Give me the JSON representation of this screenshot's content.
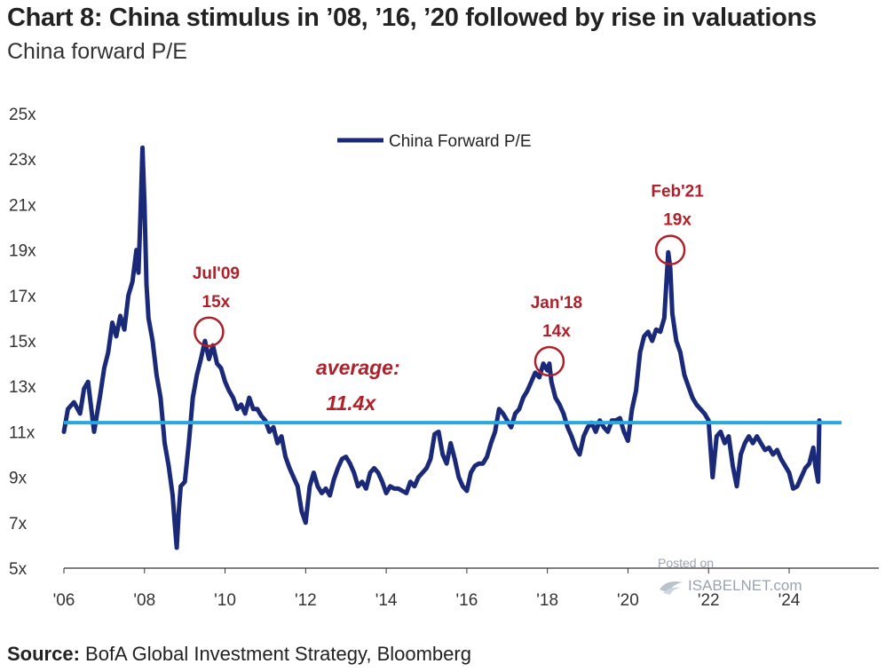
{
  "title": "Chart 8: China stimulus in ’08, ’16, ’20 followed by rise in valuations",
  "subtitle": "China forward P/E",
  "source": {
    "label": "Source:",
    "text": " BofA Global Investment Strategy, Bloomberg"
  },
  "watermark": {
    "posted": "Posted on",
    "site": "ISABELNET.com"
  },
  "colors": {
    "series": "#1a2a78",
    "average": "#29a8e0",
    "annotation": "#b0202a",
    "axis": "#333333"
  },
  "chart_data": {
    "type": "line",
    "ylim": [
      5,
      25
    ],
    "xlim": [
      2006.0,
      2025.3
    ],
    "yticks": [
      {
        "value": 25,
        "label": "25x"
      },
      {
        "value": 23,
        "label": "23x"
      },
      {
        "value": 21,
        "label": "21x"
      },
      {
        "value": 19,
        "label": "19x"
      },
      {
        "value": 17,
        "label": "17x"
      },
      {
        "value": 15,
        "label": "15x"
      },
      {
        "value": 13,
        "label": "13x"
      },
      {
        "value": 11,
        "label": "11x"
      },
      {
        "value": 9,
        "label": "9x"
      },
      {
        "value": 7,
        "label": "7x"
      },
      {
        "value": 5,
        "label": "5x"
      }
    ],
    "xticks": [
      {
        "value": 2006,
        "label": "'06"
      },
      {
        "value": 2008,
        "label": "'08"
      },
      {
        "value": 2010,
        "label": "'10"
      },
      {
        "value": 2012,
        "label": "'12"
      },
      {
        "value": 2014,
        "label": "'14"
      },
      {
        "value": 2016,
        "label": "'16"
      },
      {
        "value": 2018,
        "label": "'18"
      },
      {
        "value": 2020,
        "label": "'20"
      },
      {
        "value": 2022,
        "label": "'22"
      },
      {
        "value": 2024,
        "label": "'24"
      }
    ],
    "legend": {
      "position": "top-center",
      "entries": [
        "China Forward P/E"
      ]
    },
    "series": [
      {
        "name": "China Forward P/E",
        "x": [
          2006.0,
          2006.1,
          2006.25,
          2006.4,
          2006.5,
          2006.6,
          2006.75,
          2006.9,
          2007.0,
          2007.1,
          2007.2,
          2007.3,
          2007.4,
          2007.5,
          2007.6,
          2007.7,
          2007.8,
          2007.85,
          2007.9,
          2007.95,
          2008.0,
          2008.05,
          2008.1,
          2008.2,
          2008.3,
          2008.4,
          2008.5,
          2008.6,
          2008.7,
          2008.75,
          2008.8,
          2008.85,
          2008.9,
          2009.0,
          2009.1,
          2009.2,
          2009.3,
          2009.4,
          2009.5,
          2009.6,
          2009.7,
          2009.8,
          2009.9,
          2010.0,
          2010.1,
          2010.2,
          2010.3,
          2010.4,
          2010.5,
          2010.6,
          2010.7,
          2010.8,
          2010.9,
          2011.0,
          2011.1,
          2011.2,
          2011.3,
          2011.4,
          2011.5,
          2011.6,
          2011.7,
          2011.8,
          2011.9,
          2012.0,
          2012.1,
          2012.2,
          2012.3,
          2012.4,
          2012.5,
          2012.6,
          2012.7,
          2012.8,
          2012.9,
          2013.0,
          2013.1,
          2013.2,
          2013.3,
          2013.4,
          2013.5,
          2013.6,
          2013.7,
          2013.8,
          2013.9,
          2014.0,
          2014.1,
          2014.2,
          2014.3,
          2014.4,
          2014.5,
          2014.6,
          2014.7,
          2014.8,
          2014.9,
          2015.0,
          2015.1,
          2015.2,
          2015.3,
          2015.4,
          2015.5,
          2015.6,
          2015.7,
          2015.8,
          2015.9,
          2016.0,
          2016.1,
          2016.2,
          2016.3,
          2016.4,
          2016.5,
          2016.6,
          2016.7,
          2016.8,
          2016.9,
          2017.0,
          2017.1,
          2017.2,
          2017.3,
          2017.4,
          2017.5,
          2017.6,
          2017.7,
          2017.8,
          2017.9,
          2018.0,
          2018.05,
          2018.1,
          2018.2,
          2018.3,
          2018.4,
          2018.5,
          2018.6,
          2018.7,
          2018.8,
          2018.9,
          2019.0,
          2019.1,
          2019.2,
          2019.3,
          2019.4,
          2019.5,
          2019.6,
          2019.7,
          2019.8,
          2019.9,
          2020.0,
          2020.1,
          2020.2,
          2020.3,
          2020.4,
          2020.5,
          2020.6,
          2020.7,
          2020.8,
          2020.9,
          2021.0,
          2021.05,
          2021.1,
          2021.2,
          2021.3,
          2021.4,
          2021.5,
          2021.6,
          2021.7,
          2021.8,
          2021.9,
          2022.0,
          2022.1,
          2022.2,
          2022.3,
          2022.4,
          2022.5,
          2022.6,
          2022.7,
          2022.8,
          2022.9,
          2023.0,
          2023.1,
          2023.2,
          2023.3,
          2023.4,
          2023.5,
          2023.6,
          2023.7,
          2023.8,
          2023.9,
          2024.0,
          2024.1,
          2024.2,
          2024.3,
          2024.4,
          2024.5,
          2024.6,
          2024.65,
          2024.7,
          2024.72,
          2024.75
        ],
        "values": [
          11.0,
          12.0,
          12.3,
          11.8,
          12.9,
          13.2,
          11.0,
          12.6,
          13.8,
          14.5,
          15.8,
          15.2,
          16.1,
          15.5,
          17.0,
          17.6,
          19.0,
          18.0,
          20.5,
          23.5,
          21.0,
          17.5,
          16.0,
          15.0,
          13.5,
          12.5,
          10.5,
          9.5,
          8.2,
          7.0,
          5.9,
          7.5,
          8.6,
          8.8,
          10.5,
          12.5,
          13.5,
          14.2,
          15.0,
          14.2,
          14.8,
          14.0,
          13.8,
          13.2,
          12.8,
          12.5,
          12.0,
          12.2,
          11.8,
          12.5,
          12.0,
          12.0,
          11.7,
          11.5,
          11.0,
          11.2,
          10.5,
          10.8,
          9.9,
          9.4,
          9.0,
          8.6,
          7.5,
          7.0,
          8.6,
          9.2,
          8.6,
          8.3,
          8.5,
          8.2,
          8.9,
          9.4,
          9.8,
          9.9,
          9.6,
          9.2,
          8.6,
          8.8,
          8.5,
          9.2,
          9.4,
          9.2,
          8.8,
          8.3,
          8.6,
          8.5,
          8.5,
          8.4,
          8.3,
          8.8,
          8.6,
          9.0,
          9.2,
          9.4,
          9.8,
          10.9,
          11.0,
          10.0,
          9.6,
          10.5,
          9.8,
          9.0,
          8.6,
          8.4,
          9.2,
          9.5,
          9.6,
          9.6,
          9.9,
          10.5,
          11.0,
          12.0,
          11.8,
          11.5,
          11.2,
          11.8,
          12.0,
          12.5,
          12.8,
          13.2,
          13.6,
          13.4,
          14.0,
          13.7,
          14.0,
          13.2,
          12.5,
          12.2,
          11.8,
          11.2,
          10.8,
          10.3,
          10.0,
          10.8,
          11.2,
          11.4,
          11.0,
          11.5,
          11.2,
          11.0,
          11.5,
          11.5,
          11.6,
          11.0,
          10.6,
          12.0,
          12.8,
          14.5,
          15.2,
          15.4,
          15.0,
          15.5,
          15.4,
          16.0,
          18.9,
          18.2,
          16.2,
          15.0,
          14.5,
          13.5,
          13.0,
          12.5,
          12.2,
          12.0,
          11.8,
          11.5,
          9.0,
          10.8,
          11.0,
          10.5,
          10.8,
          9.5,
          8.6,
          10.0,
          10.5,
          10.8,
          10.5,
          10.8,
          10.5,
          10.2,
          10.3,
          10.0,
          10.2,
          9.8,
          9.5,
          9.2,
          8.5,
          8.6,
          9.0,
          9.4,
          9.6,
          10.3,
          9.5,
          9.0,
          8.8,
          11.5
        ]
      }
    ],
    "reference_lines": [
      {
        "name": "average",
        "value": 11.4
      }
    ],
    "annotations": [
      {
        "x": 2009.6,
        "y": 15.4,
        "line1": "Jul'09",
        "line2": "15x"
      },
      {
        "x": 2018.05,
        "y": 14.1,
        "line1": "Jan'18",
        "line2": "14x"
      },
      {
        "x": 2021.05,
        "y": 19.0,
        "line1": "Feb'21",
        "line2": "19x"
      }
    ],
    "average_label": {
      "line1": "average:",
      "line2": "11.4x"
    }
  }
}
